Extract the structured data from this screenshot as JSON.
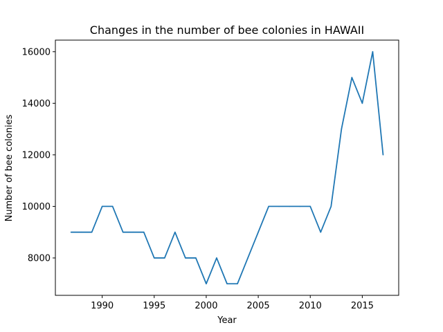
{
  "chart_data": {
    "type": "line",
    "title": "Changes in the number of bee colonies in HAWAII",
    "xlabel": "Year",
    "ylabel": "Number of bee colonies",
    "xlim": [
      1985.5,
      2018.5
    ],
    "ylim": [
      6550,
      16450
    ],
    "xticks": [
      1990,
      1995,
      2000,
      2005,
      2010,
      2015
    ],
    "yticks": [
      8000,
      10000,
      12000,
      14000,
      16000
    ],
    "grid": false,
    "series": [
      {
        "color": "#1f77b4",
        "x": [
          1987,
          1988,
          1989,
          1990,
          1991,
          1992,
          1993,
          1994,
          1995,
          1996,
          1997,
          1998,
          1999,
          2000,
          2001,
          2002,
          2003,
          2004,
          2005,
          2006,
          2007,
          2008,
          2009,
          2010,
          2011,
          2012,
          2013,
          2014,
          2015,
          2016,
          2017
        ],
        "y": [
          9000,
          9000,
          9000,
          10000,
          10000,
          9000,
          9000,
          9000,
          8000,
          8000,
          9000,
          8000,
          8000,
          7000,
          8000,
          7000,
          7000,
          8000,
          9000,
          10000,
          10000,
          10000,
          10000,
          10000,
          9000,
          10000,
          13000,
          15000,
          14000,
          16000,
          12000
        ]
      }
    ]
  }
}
